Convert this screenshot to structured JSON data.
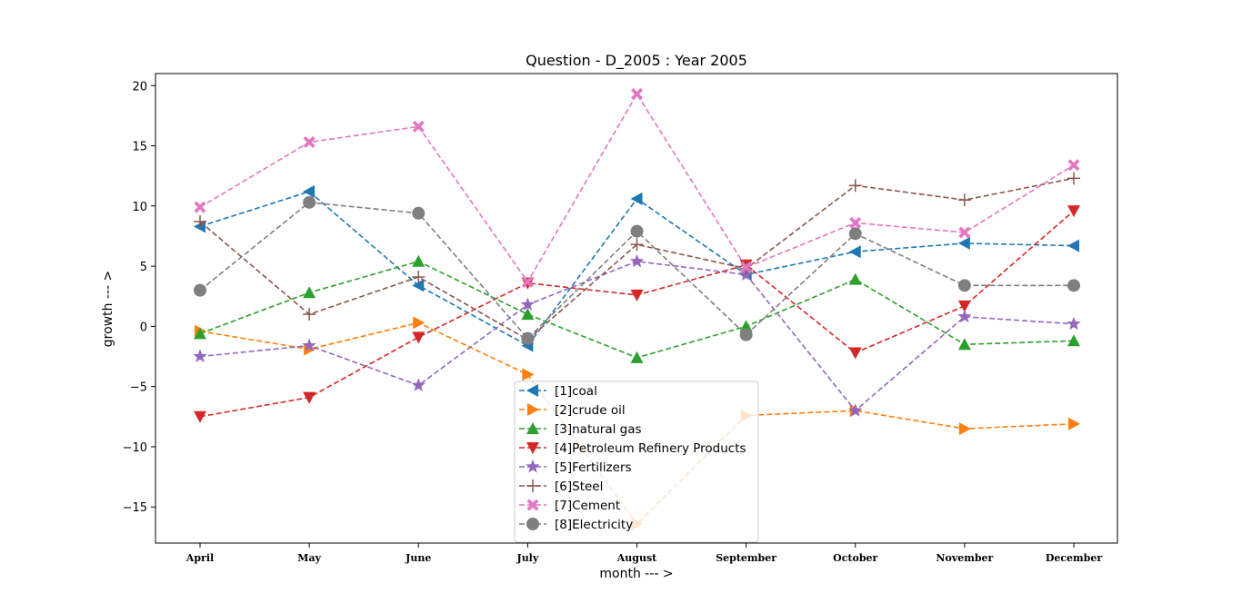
{
  "chart_data": {
    "type": "line",
    "title": "Question - D_2005 : Year 2005",
    "xlabel": "month --- >",
    "ylabel": "growth --- >",
    "categories": [
      "April",
      "May",
      "June",
      "July",
      "August",
      "September",
      "October",
      "November",
      "December"
    ],
    "yticks": [
      -15,
      -10,
      -5,
      0,
      5,
      10,
      15,
      20
    ],
    "ylim": [
      -18,
      21
    ],
    "grid": false,
    "legend_position": "bottom-center",
    "series": [
      {
        "name": "[1]coal",
        "color": "#1f77b4",
        "marker": "triangle-left",
        "values": [
          8.3,
          11.2,
          3.4,
          -1.6,
          10.6,
          4.3,
          6.2,
          6.9,
          6.7
        ]
      },
      {
        "name": "[2]crude oil",
        "color": "#ff7f0e",
        "marker": "triangle-right",
        "values": [
          -0.4,
          -1.9,
          0.3,
          -4.0,
          -16.4,
          -7.4,
          -7.0,
          -8.5,
          -8.1
        ]
      },
      {
        "name": "[3]natural gas",
        "color": "#2ca02c",
        "marker": "triangle-up",
        "values": [
          -0.6,
          2.8,
          5.4,
          1.0,
          -2.6,
          0.0,
          3.9,
          -1.5,
          -1.2
        ]
      },
      {
        "name": "[4]Petroleum Refinery Products",
        "color": "#d62728",
        "marker": "triangle-down",
        "values": [
          -7.5,
          -5.9,
          -0.9,
          3.6,
          2.6,
          5.1,
          -2.2,
          1.7,
          9.6
        ]
      },
      {
        "name": "[5]Fertilizers",
        "color": "#9467bd",
        "marker": "star",
        "values": [
          -2.5,
          -1.6,
          -4.9,
          1.8,
          5.4,
          4.3,
          -7.0,
          0.8,
          0.2
        ]
      },
      {
        "name": "[6]Steel",
        "color": "#8c564b",
        "marker": "plus",
        "values": [
          8.7,
          1.0,
          4.1,
          -1.1,
          6.8,
          4.8,
          11.7,
          10.5,
          12.3
        ]
      },
      {
        "name": "[7]Cement",
        "color": "#e377c2",
        "marker": "x",
        "values": [
          9.9,
          15.3,
          16.6,
          3.7,
          19.3,
          4.9,
          8.6,
          7.8,
          13.4
        ]
      },
      {
        "name": "[8]Electricity",
        "color": "#7f7f7f",
        "marker": "circle",
        "values": [
          3.0,
          10.3,
          9.4,
          -1.0,
          7.9,
          -0.7,
          7.7,
          3.4,
          3.4
        ]
      }
    ]
  }
}
